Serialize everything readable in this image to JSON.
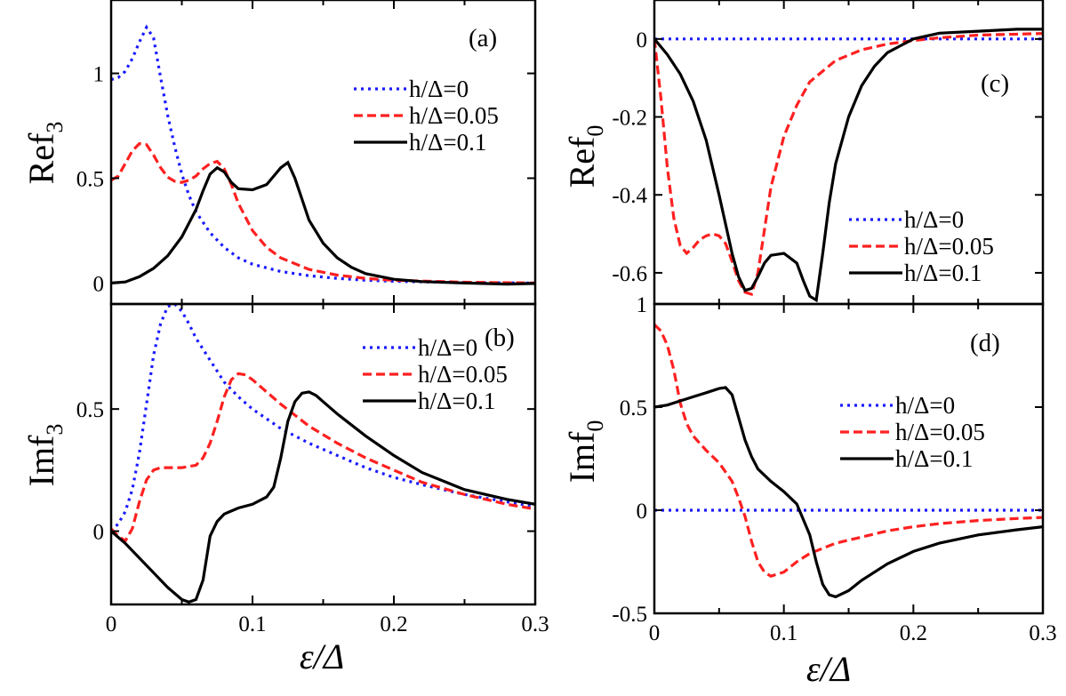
{
  "figure": {
    "xlabel_symbol": "ε/Δ"
  },
  "colors": {
    "h0": "#1a1aff",
    "h005": "#ff2020",
    "h01": "#000000"
  },
  "legend": [
    {
      "label": "h/Δ=0",
      "style": "dotted",
      "color": "#1a1aff"
    },
    {
      "label": "h/Δ=0.05",
      "style": "dashed",
      "color": "#ff2020"
    },
    {
      "label": "h/Δ=0.1",
      "style": "solid",
      "color": "#000000"
    }
  ],
  "chart_data": [
    {
      "id": "a",
      "type": "line",
      "panel_label": "(a)",
      "ylabel_main": "Ref",
      "ylabel_sub": "3",
      "xlim": [
        0,
        0.3
      ],
      "ylim": [
        -0.1,
        1.35
      ],
      "xticks": [],
      "yticks": [
        {
          "v": 1,
          "label": "1"
        },
        {
          "v": 0.5,
          "label": "0.5"
        },
        {
          "v": 0,
          "label": "0"
        }
      ],
      "series": [
        {
          "name": "h/Δ=0",
          "color": "#1a1aff",
          "style": "dotted",
          "x": [
            0,
            0.005,
            0.01,
            0.015,
            0.02,
            0.025,
            0.03,
            0.035,
            0.04,
            0.045,
            0.05,
            0.055,
            0.06,
            0.07,
            0.08,
            0.09,
            0.1,
            0.12,
            0.14,
            0.16,
            0.18,
            0.2,
            0.25,
            0.3
          ],
          "y": [
            0.97,
            0.98,
            1.01,
            1.07,
            1.15,
            1.22,
            1.17,
            0.98,
            0.8,
            0.65,
            0.52,
            0.42,
            0.34,
            0.24,
            0.17,
            0.12,
            0.09,
            0.055,
            0.035,
            0.022,
            0.013,
            0.008,
            0.002,
            0
          ]
        },
        {
          "name": "h/Δ=0.05",
          "color": "#ff2020",
          "style": "dashed",
          "x": [
            0,
            0.005,
            0.01,
            0.015,
            0.02,
            0.025,
            0.03,
            0.035,
            0.04,
            0.045,
            0.05,
            0.055,
            0.06,
            0.065,
            0.07,
            0.075,
            0.08,
            0.085,
            0.09,
            0.1,
            0.11,
            0.12,
            0.14,
            0.16,
            0.18,
            0.2,
            0.25,
            0.3
          ],
          "y": [
            0.49,
            0.51,
            0.57,
            0.63,
            0.665,
            0.66,
            0.61,
            0.55,
            0.505,
            0.485,
            0.48,
            0.49,
            0.51,
            0.545,
            0.57,
            0.58,
            0.545,
            0.47,
            0.38,
            0.25,
            0.17,
            0.12,
            0.065,
            0.038,
            0.022,
            0.013,
            0.004,
            0
          ]
        },
        {
          "name": "h/Δ=0.1",
          "color": "#000000",
          "style": "solid",
          "x": [
            0,
            0.01,
            0.02,
            0.03,
            0.04,
            0.05,
            0.06,
            0.065,
            0.07,
            0.075,
            0.08,
            0.085,
            0.09,
            0.1,
            0.11,
            0.115,
            0.12,
            0.125,
            0.13,
            0.135,
            0.14,
            0.15,
            0.16,
            0.17,
            0.18,
            0.2,
            0.22,
            0.25,
            0.28,
            0.3
          ],
          "y": [
            0,
            0.005,
            0.03,
            0.07,
            0.13,
            0.22,
            0.35,
            0.44,
            0.52,
            0.55,
            0.53,
            0.48,
            0.45,
            0.445,
            0.47,
            0.51,
            0.55,
            0.575,
            0.5,
            0.4,
            0.3,
            0.19,
            0.12,
            0.075,
            0.045,
            0.018,
            0.007,
            0,
            -0.005,
            -0.002
          ]
        }
      ]
    },
    {
      "id": "b",
      "type": "line",
      "panel_label": "(b)",
      "ylabel_main": "Imf",
      "ylabel_sub": "3",
      "xlim": [
        0,
        0.3
      ],
      "ylim": [
        -0.3,
        0.93
      ],
      "xticks": [
        {
          "v": 0,
          "label": "0"
        },
        {
          "v": 0.1,
          "label": "0.1"
        },
        {
          "v": 0.2,
          "label": "0.2"
        },
        {
          "v": 0.3,
          "label": "0.3"
        }
      ],
      "yticks": [
        {
          "v": 0.5,
          "label": "0.5"
        },
        {
          "v": 0,
          "label": "0"
        }
      ],
      "series": [
        {
          "name": "h/Δ=0",
          "color": "#1a1aff",
          "style": "dotted",
          "x": [
            0,
            0.005,
            0.01,
            0.015,
            0.02,
            0.025,
            0.03,
            0.035,
            0.04,
            0.045,
            0.05,
            0.055,
            0.06,
            0.07,
            0.08,
            0.09,
            0.1,
            0.12,
            0.14,
            0.16,
            0.18,
            0.2,
            0.22,
            0.25,
            0.28,
            0.3
          ],
          "y": [
            0,
            0.03,
            0.08,
            0.17,
            0.32,
            0.52,
            0.72,
            0.85,
            0.92,
            0.93,
            0.9,
            0.85,
            0.79,
            0.7,
            0.61,
            0.55,
            0.5,
            0.42,
            0.36,
            0.31,
            0.26,
            0.22,
            0.19,
            0.15,
            0.12,
            0.1
          ]
        },
        {
          "name": "h/Δ=0.05",
          "color": "#ff2020",
          "style": "dashed",
          "x": [
            0,
            0.005,
            0.01,
            0.015,
            0.02,
            0.025,
            0.03,
            0.035,
            0.04,
            0.05,
            0.06,
            0.065,
            0.07,
            0.075,
            0.08,
            0.085,
            0.09,
            0.095,
            0.1,
            0.11,
            0.12,
            0.14,
            0.16,
            0.18,
            0.2,
            0.22,
            0.25,
            0.28,
            0.3
          ],
          "y": [
            0.01,
            -0.02,
            -0.04,
            0.01,
            0.12,
            0.21,
            0.25,
            0.26,
            0.26,
            0.26,
            0.27,
            0.3,
            0.36,
            0.45,
            0.55,
            0.62,
            0.645,
            0.64,
            0.62,
            0.57,
            0.52,
            0.43,
            0.36,
            0.3,
            0.25,
            0.2,
            0.15,
            0.11,
            0.09
          ]
        },
        {
          "name": "h/Δ=0.1",
          "color": "#000000",
          "style": "solid",
          "x": [
            0,
            0.01,
            0.02,
            0.03,
            0.04,
            0.05,
            0.055,
            0.06,
            0.065,
            0.07,
            0.075,
            0.08,
            0.09,
            0.1,
            0.11,
            0.115,
            0.12,
            0.125,
            0.13,
            0.135,
            0.14,
            0.145,
            0.15,
            0.16,
            0.18,
            0.2,
            0.22,
            0.25,
            0.28,
            0.3
          ],
          "y": [
            0,
            -0.05,
            -0.11,
            -0.17,
            -0.23,
            -0.28,
            -0.29,
            -0.28,
            -0.2,
            -0.02,
            0.04,
            0.07,
            0.095,
            0.11,
            0.14,
            0.18,
            0.3,
            0.45,
            0.53,
            0.565,
            0.57,
            0.555,
            0.53,
            0.48,
            0.39,
            0.31,
            0.24,
            0.17,
            0.13,
            0.11
          ]
        }
      ]
    },
    {
      "id": "c",
      "type": "line",
      "panel_label": "(c)",
      "ylabel_main": "Ref",
      "ylabel_sub": "0",
      "xlim": [
        0,
        0.3
      ],
      "ylim": [
        -0.68,
        0.1
      ],
      "xticks": [],
      "yticks": [
        {
          "v": 0,
          "label": "0"
        },
        {
          "v": -0.2,
          "label": "-0.2"
        },
        {
          "v": -0.4,
          "label": "-0.4"
        },
        {
          "v": -0.6,
          "label": "-0.6"
        }
      ],
      "series": [
        {
          "name": "h/Δ=0",
          "color": "#1a1aff",
          "style": "dotted",
          "x": [
            0,
            0.3
          ],
          "y": [
            0,
            0
          ]
        },
        {
          "name": "h/Δ=0.05",
          "color": "#ff2020",
          "style": "dashed",
          "x": [
            0,
            0.005,
            0.01,
            0.015,
            0.02,
            0.025,
            0.03,
            0.035,
            0.04,
            0.045,
            0.05,
            0.055,
            0.06,
            0.065,
            0.07,
            0.075,
            0.08,
            0.085,
            0.09,
            0.1,
            0.11,
            0.12,
            0.14,
            0.16,
            0.18,
            0.2,
            0.22,
            0.25,
            0.3
          ],
          "y": [
            0,
            -0.15,
            -0.33,
            -0.46,
            -0.53,
            -0.55,
            -0.535,
            -0.515,
            -0.505,
            -0.5,
            -0.505,
            -0.525,
            -0.57,
            -0.62,
            -0.65,
            -0.655,
            -0.6,
            -0.49,
            -0.38,
            -0.25,
            -0.17,
            -0.11,
            -0.055,
            -0.028,
            -0.013,
            -0.004,
            0.003,
            0.01,
            0.014
          ]
        },
        {
          "name": "h/Δ=0.1",
          "color": "#000000",
          "style": "solid",
          "x": [
            0,
            0.01,
            0.02,
            0.03,
            0.04,
            0.05,
            0.06,
            0.065,
            0.07,
            0.075,
            0.08,
            0.085,
            0.09,
            0.1,
            0.11,
            0.115,
            0.12,
            0.125,
            0.13,
            0.135,
            0.14,
            0.15,
            0.16,
            0.17,
            0.18,
            0.2,
            0.22,
            0.25,
            0.28,
            0.3
          ],
          "y": [
            0,
            -0.04,
            -0.09,
            -0.16,
            -0.26,
            -0.4,
            -0.55,
            -0.61,
            -0.645,
            -0.64,
            -0.61,
            -0.575,
            -0.555,
            -0.55,
            -0.575,
            -0.62,
            -0.66,
            -0.67,
            -0.55,
            -0.42,
            -0.32,
            -0.2,
            -0.12,
            -0.07,
            -0.035,
            0.0,
            0.015,
            0.02,
            0.025,
            0.025
          ]
        }
      ]
    },
    {
      "id": "d",
      "type": "line",
      "panel_label": "(d)",
      "ylabel_main": "Imf",
      "ylabel_sub": "0",
      "xlim": [
        0,
        0.3
      ],
      "ylim": [
        -0.5,
        1.0
      ],
      "xticks": [
        {
          "v": 0,
          "label": "0"
        },
        {
          "v": 0.1,
          "label": "0.1"
        },
        {
          "v": 0.2,
          "label": "0.2"
        },
        {
          "v": 0.3,
          "label": "0.3"
        }
      ],
      "yticks": [
        {
          "v": 1,
          "label": "1"
        },
        {
          "v": 0.5,
          "label": "0.5"
        },
        {
          "v": 0,
          "label": "0"
        },
        {
          "v": -0.5,
          "label": "-0.5"
        }
      ],
      "series": [
        {
          "name": "h/Δ=0",
          "color": "#1a1aff",
          "style": "dotted",
          "x": [
            0,
            0.3
          ],
          "y": [
            0,
            0
          ]
        },
        {
          "name": "h/Δ=0.05",
          "color": "#ff2020",
          "style": "dashed",
          "x": [
            0,
            0.005,
            0.01,
            0.015,
            0.02,
            0.025,
            0.03,
            0.04,
            0.05,
            0.06,
            0.065,
            0.07,
            0.075,
            0.08,
            0.085,
            0.09,
            0.1,
            0.11,
            0.12,
            0.14,
            0.16,
            0.18,
            0.2,
            0.22,
            0.25,
            0.28,
            0.3
          ],
          "y": [
            0.9,
            0.87,
            0.8,
            0.68,
            0.52,
            0.42,
            0.36,
            0.29,
            0.23,
            0.14,
            0.06,
            -0.03,
            -0.15,
            -0.25,
            -0.3,
            -0.32,
            -0.3,
            -0.25,
            -0.21,
            -0.16,
            -0.13,
            -0.1,
            -0.08,
            -0.065,
            -0.05,
            -0.04,
            -0.035
          ]
        },
        {
          "name": "h/Δ=0.1",
          "color": "#000000",
          "style": "solid",
          "x": [
            0,
            0.01,
            0.02,
            0.03,
            0.04,
            0.05,
            0.055,
            0.06,
            0.065,
            0.07,
            0.075,
            0.08,
            0.09,
            0.1,
            0.11,
            0.12,
            0.125,
            0.13,
            0.135,
            0.14,
            0.15,
            0.16,
            0.18,
            0.2,
            0.22,
            0.25,
            0.28,
            0.3
          ],
          "y": [
            0.5,
            0.51,
            0.53,
            0.55,
            0.57,
            0.59,
            0.595,
            0.56,
            0.45,
            0.34,
            0.26,
            0.2,
            0.14,
            0.09,
            0.03,
            -0.12,
            -0.25,
            -0.36,
            -0.41,
            -0.42,
            -0.39,
            -0.34,
            -0.26,
            -0.2,
            -0.16,
            -0.12,
            -0.095,
            -0.08
          ]
        }
      ]
    }
  ]
}
